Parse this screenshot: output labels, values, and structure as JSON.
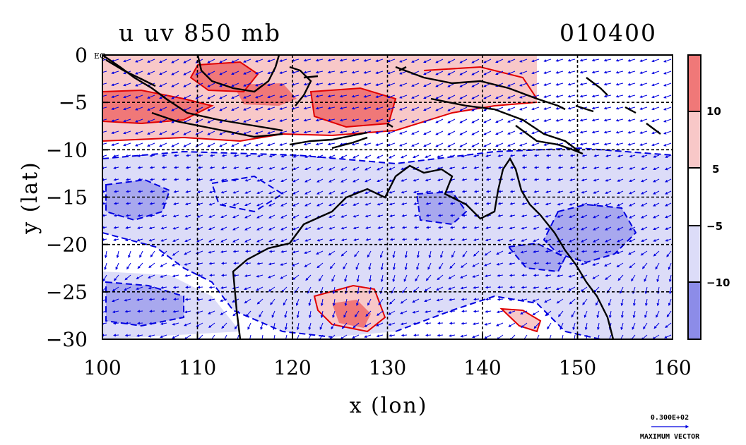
{
  "title": "u uv 850 mb",
  "date_label": "010400",
  "x_axis_label": "x (lon)",
  "y_axis_label": "y (lat)",
  "x_ticks": [
    "100",
    "110",
    "120",
    "130",
    "140",
    "150",
    "160"
  ],
  "y_ticks": [
    "0",
    "−5",
    "−10",
    "−15",
    "−20",
    "−25",
    "−30"
  ],
  "y_tick_values": [
    0,
    -5,
    -10,
    -15,
    -20,
    -25,
    -30
  ],
  "x_tick_values": [
    100,
    110,
    120,
    130,
    140,
    150,
    160
  ],
  "eq_label": "EQ",
  "colorbar": {
    "labels": [
      "10",
      "5",
      "−5",
      "−10"
    ],
    "colors": [
      "#f07878",
      "#f8c8c8",
      "#ffffff",
      "#dcdcf8",
      "#8c8ce8"
    ]
  },
  "vector_key": {
    "magnitude": "0.300E+02",
    "label": "MAXIMUM VECTOR"
  },
  "chart_data": {
    "type": "heatmap",
    "title": "u uv 850 mb",
    "xlabel": "x (lon)",
    "ylabel": "y (lat)",
    "xlim": [
      100,
      160
    ],
    "ylim": [
      -30,
      0
    ],
    "contour_levels": [
      -10,
      -5,
      5,
      10
    ],
    "colors": {
      "positive": "#f07878",
      "weak_positive": "#f8c8c8",
      "weak_negative": "#dcdcf8",
      "negative": "#8c8ce8",
      "positive_contour": "#e00000",
      "negative_contour": "#0000e0",
      "vector": "#0000e0",
      "coastline": "#000000"
    },
    "grid": "dashed"
  }
}
